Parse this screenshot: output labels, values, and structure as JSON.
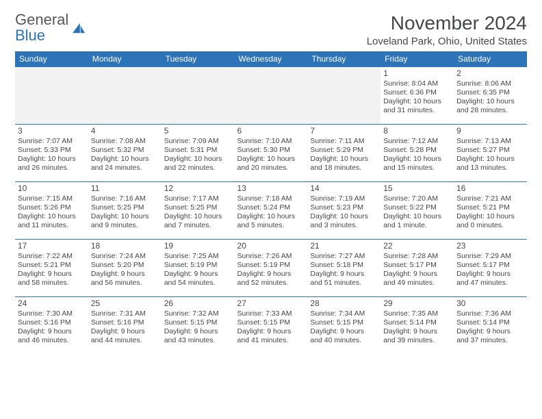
{
  "logo": {
    "word1": "General",
    "word2": "Blue",
    "sail_color": "#2d73b7",
    "text_color": "#55585a"
  },
  "title": "November 2024",
  "location": "Loveland Park, Ohio, United States",
  "colors": {
    "header_bg": "#2d73b7",
    "header_text": "#ffffff",
    "row_border": "#2d73b7",
    "blank_bg": "#f2f2f2",
    "body_text": "#444648",
    "page_bg": "#ffffff"
  },
  "typography": {
    "title_size_pt": 22,
    "location_size_pt": 12,
    "header_size_pt": 10,
    "cell_size_pt": 8
  },
  "weekdays": [
    "Sunday",
    "Monday",
    "Tuesday",
    "Wednesday",
    "Thursday",
    "Friday",
    "Saturday"
  ],
  "grid": [
    [
      {
        "blank": true
      },
      {
        "blank": true
      },
      {
        "blank": true
      },
      {
        "blank": true
      },
      {
        "blank": true
      },
      {
        "day": "1",
        "sunrise": "Sunrise: 8:04 AM",
        "sunset": "Sunset: 6:36 PM",
        "daylight": "Daylight: 10 hours and 31 minutes."
      },
      {
        "day": "2",
        "sunrise": "Sunrise: 8:06 AM",
        "sunset": "Sunset: 6:35 PM",
        "daylight": "Daylight: 10 hours and 28 minutes."
      }
    ],
    [
      {
        "day": "3",
        "sunrise": "Sunrise: 7:07 AM",
        "sunset": "Sunset: 5:33 PM",
        "daylight": "Daylight: 10 hours and 26 minutes."
      },
      {
        "day": "4",
        "sunrise": "Sunrise: 7:08 AM",
        "sunset": "Sunset: 5:32 PM",
        "daylight": "Daylight: 10 hours and 24 minutes."
      },
      {
        "day": "5",
        "sunrise": "Sunrise: 7:09 AM",
        "sunset": "Sunset: 5:31 PM",
        "daylight": "Daylight: 10 hours and 22 minutes."
      },
      {
        "day": "6",
        "sunrise": "Sunrise: 7:10 AM",
        "sunset": "Sunset: 5:30 PM",
        "daylight": "Daylight: 10 hours and 20 minutes."
      },
      {
        "day": "7",
        "sunrise": "Sunrise: 7:11 AM",
        "sunset": "Sunset: 5:29 PM",
        "daylight": "Daylight: 10 hours and 18 minutes."
      },
      {
        "day": "8",
        "sunrise": "Sunrise: 7:12 AM",
        "sunset": "Sunset: 5:28 PM",
        "daylight": "Daylight: 10 hours and 15 minutes."
      },
      {
        "day": "9",
        "sunrise": "Sunrise: 7:13 AM",
        "sunset": "Sunset: 5:27 PM",
        "daylight": "Daylight: 10 hours and 13 minutes."
      }
    ],
    [
      {
        "day": "10",
        "sunrise": "Sunrise: 7:15 AM",
        "sunset": "Sunset: 5:26 PM",
        "daylight": "Daylight: 10 hours and 11 minutes."
      },
      {
        "day": "11",
        "sunrise": "Sunrise: 7:16 AM",
        "sunset": "Sunset: 5:25 PM",
        "daylight": "Daylight: 10 hours and 9 minutes."
      },
      {
        "day": "12",
        "sunrise": "Sunrise: 7:17 AM",
        "sunset": "Sunset: 5:25 PM",
        "daylight": "Daylight: 10 hours and 7 minutes."
      },
      {
        "day": "13",
        "sunrise": "Sunrise: 7:18 AM",
        "sunset": "Sunset: 5:24 PM",
        "daylight": "Daylight: 10 hours and 5 minutes."
      },
      {
        "day": "14",
        "sunrise": "Sunrise: 7:19 AM",
        "sunset": "Sunset: 5:23 PM",
        "daylight": "Daylight: 10 hours and 3 minutes."
      },
      {
        "day": "15",
        "sunrise": "Sunrise: 7:20 AM",
        "sunset": "Sunset: 5:22 PM",
        "daylight": "Daylight: 10 hours and 1 minute."
      },
      {
        "day": "16",
        "sunrise": "Sunrise: 7:21 AM",
        "sunset": "Sunset: 5:21 PM",
        "daylight": "Daylight: 10 hours and 0 minutes."
      }
    ],
    [
      {
        "day": "17",
        "sunrise": "Sunrise: 7:22 AM",
        "sunset": "Sunset: 5:21 PM",
        "daylight": "Daylight: 9 hours and 58 minutes."
      },
      {
        "day": "18",
        "sunrise": "Sunrise: 7:24 AM",
        "sunset": "Sunset: 5:20 PM",
        "daylight": "Daylight: 9 hours and 56 minutes."
      },
      {
        "day": "19",
        "sunrise": "Sunrise: 7:25 AM",
        "sunset": "Sunset: 5:19 PM",
        "daylight": "Daylight: 9 hours and 54 minutes."
      },
      {
        "day": "20",
        "sunrise": "Sunrise: 7:26 AM",
        "sunset": "Sunset: 5:19 PM",
        "daylight": "Daylight: 9 hours and 52 minutes."
      },
      {
        "day": "21",
        "sunrise": "Sunrise: 7:27 AM",
        "sunset": "Sunset: 5:18 PM",
        "daylight": "Daylight: 9 hours and 51 minutes."
      },
      {
        "day": "22",
        "sunrise": "Sunrise: 7:28 AM",
        "sunset": "Sunset: 5:17 PM",
        "daylight": "Daylight: 9 hours and 49 minutes."
      },
      {
        "day": "23",
        "sunrise": "Sunrise: 7:29 AM",
        "sunset": "Sunset: 5:17 PM",
        "daylight": "Daylight: 9 hours and 47 minutes."
      }
    ],
    [
      {
        "day": "24",
        "sunrise": "Sunrise: 7:30 AM",
        "sunset": "Sunset: 5:16 PM",
        "daylight": "Daylight: 9 hours and 46 minutes."
      },
      {
        "day": "25",
        "sunrise": "Sunrise: 7:31 AM",
        "sunset": "Sunset: 5:16 PM",
        "daylight": "Daylight: 9 hours and 44 minutes."
      },
      {
        "day": "26",
        "sunrise": "Sunrise: 7:32 AM",
        "sunset": "Sunset: 5:15 PM",
        "daylight": "Daylight: 9 hours and 43 minutes."
      },
      {
        "day": "27",
        "sunrise": "Sunrise: 7:33 AM",
        "sunset": "Sunset: 5:15 PM",
        "daylight": "Daylight: 9 hours and 41 minutes."
      },
      {
        "day": "28",
        "sunrise": "Sunrise: 7:34 AM",
        "sunset": "Sunset: 5:15 PM",
        "daylight": "Daylight: 9 hours and 40 minutes."
      },
      {
        "day": "29",
        "sunrise": "Sunrise: 7:35 AM",
        "sunset": "Sunset: 5:14 PM",
        "daylight": "Daylight: 9 hours and 39 minutes."
      },
      {
        "day": "30",
        "sunrise": "Sunrise: 7:36 AM",
        "sunset": "Sunset: 5:14 PM",
        "daylight": "Daylight: 9 hours and 37 minutes."
      }
    ]
  ]
}
